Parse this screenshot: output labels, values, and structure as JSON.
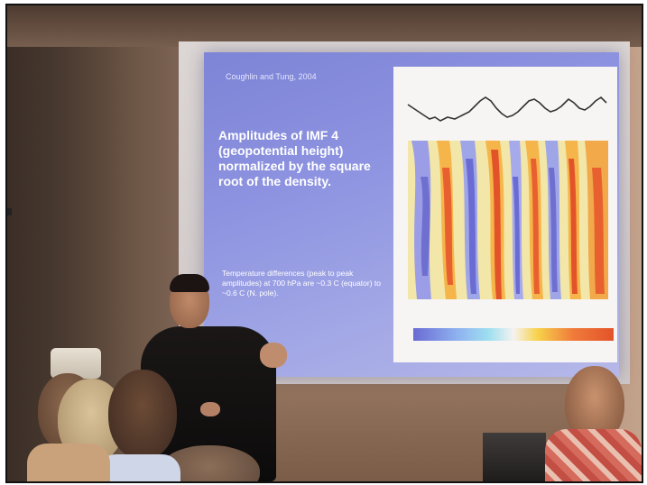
{
  "slide": {
    "source": "Coughlin and Tung, 2004",
    "heading": "Amplitudes of IMF 4 (geopotential height) normalized by the square root of the density.",
    "note": "Temperature differences (peak to peak amplitudes) at 700 hPa are ~0.3 C (equator) to ~0.6 C (N. pole)."
  },
  "colors": {
    "slide_bg": "#8d93e0",
    "contour_warm": "#e8602f",
    "contour_cool": "#6f6fd0",
    "contour_light": "#f2e6a8"
  }
}
